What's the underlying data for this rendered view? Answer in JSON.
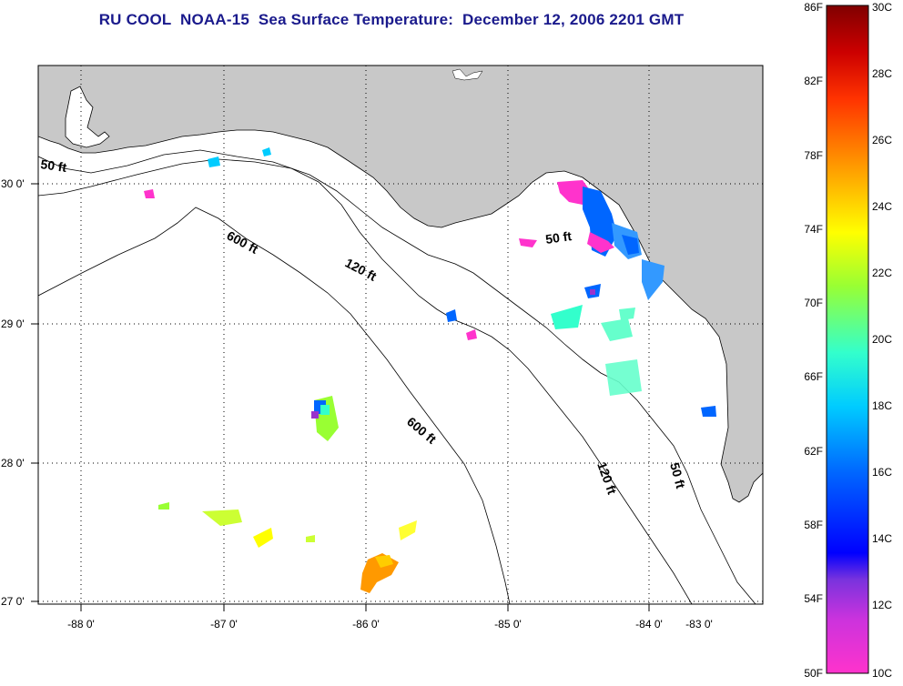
{
  "title": "RU COOL  NOAA-15  Sea Surface Temperature:  December 12, 2006 2201 GMT",
  "map": {
    "lon_ticks": [
      "-88 0'",
      "-87 0'",
      "-86 0'",
      "-85 0'",
      "-84 0'",
      "-83 0'"
    ],
    "lat_ticks": [
      "30 0'",
      "29 0'",
      "28 0'",
      "27 0'"
    ],
    "contour_labels": [
      "50 ft",
      "600 ft",
      "120 ft",
      "50 ft",
      "600 ft",
      "120 ft",
      "50 ft"
    ],
    "colors": {
      "land": "#c8c8c8",
      "ocean": "#ffffff",
      "grid": "#000000"
    }
  },
  "colorbar": {
    "fahrenheit_labels": [
      "86F",
      "82F",
      "78F",
      "74F",
      "70F",
      "66F",
      "62F",
      "58F",
      "54F",
      "50F"
    ],
    "celsius_labels": [
      "30C",
      "28C",
      "26C",
      "24C",
      "22C",
      "20C",
      "18C",
      "16C",
      "14C",
      "12C",
      "10C"
    ],
    "colors": [
      "#ff33cc",
      "#9933cc",
      "#0000ff",
      "#0066ff",
      "#00ccff",
      "#33ffcc",
      "#99ff33",
      "#ffff00",
      "#ff9900",
      "#ff3300",
      "#cc0000",
      "#800000"
    ]
  }
}
